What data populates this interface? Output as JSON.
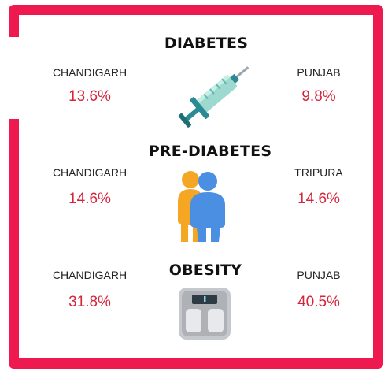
{
  "sections": [
    {
      "title": "DIABETES",
      "left_region": "CHANDIGARH",
      "left_value": "13.6%",
      "right_region": "PUNJAB",
      "right_value": "9.8%",
      "icon": "syringe-icon"
    },
    {
      "title": "PRE-DIABETES",
      "left_region": "CHANDIGARH",
      "left_value": "14.6%",
      "right_region": "TRIPURA",
      "right_value": "14.6%",
      "icon": "overweight-people-icon"
    },
    {
      "title": "OBESITY",
      "left_region": "CHANDIGARH",
      "left_value": "31.8%",
      "right_region": "PUNJAB",
      "right_value": "40.5%",
      "icon": "weighing-scale-icon"
    }
  ],
  "colors": {
    "frame": "#EE1A4F",
    "value_text": "#D5243B",
    "heading_text": "#111111"
  }
}
